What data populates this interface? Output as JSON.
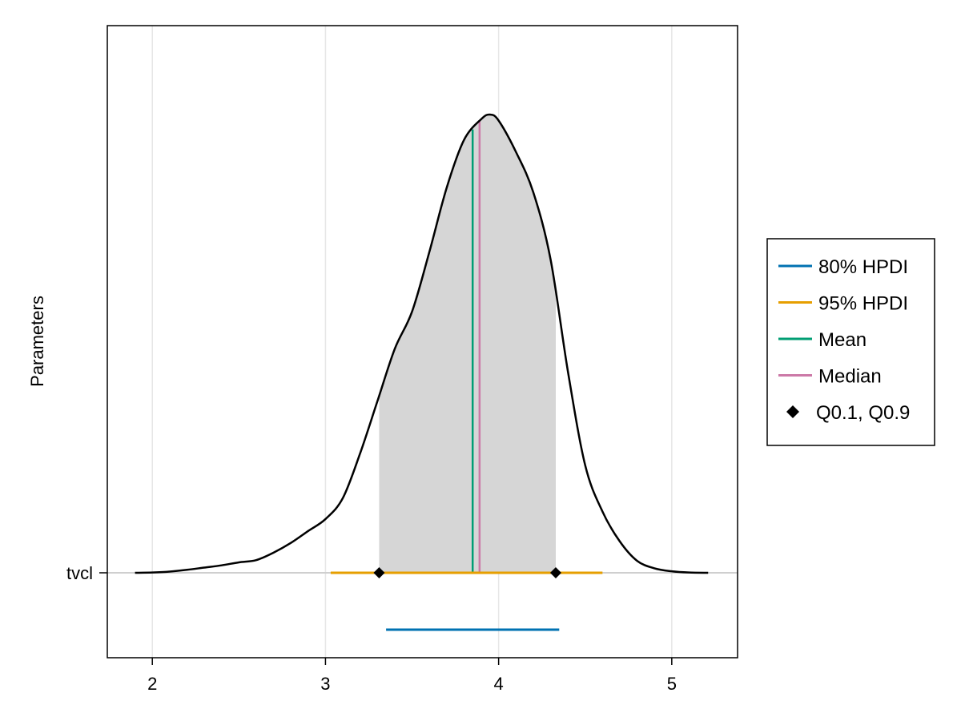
{
  "chart_data": {
    "type": "area",
    "parameter": "tvcl",
    "ylabel": "Parameters",
    "xlabel": "",
    "title": "",
    "xlim": [
      1.74,
      5.38
    ],
    "x_ticks": [
      "2",
      "3",
      "4",
      "5"
    ],
    "x_tick_values": [
      2,
      3,
      4,
      5
    ],
    "y_tick_label": "tvcl",
    "grid": true,
    "legend_position": "right",
    "density": {
      "x": [
        1.9,
        2.0,
        2.1,
        2.2,
        2.3,
        2.4,
        2.5,
        2.6,
        2.7,
        2.8,
        2.9,
        3.0,
        3.1,
        3.2,
        3.3,
        3.4,
        3.5,
        3.6,
        3.7,
        3.8,
        3.9,
        3.95,
        4.0,
        4.1,
        4.2,
        4.3,
        4.4,
        4.5,
        4.6,
        4.7,
        4.8,
        4.9,
        5.0,
        5.1,
        5.21
      ],
      "y": [
        0.0,
        0.002,
        0.008,
        0.02,
        0.035,
        0.05,
        0.07,
        0.085,
        0.135,
        0.2,
        0.28,
        0.36,
        0.5,
        0.8,
        1.15,
        1.5,
        1.75,
        2.15,
        2.58,
        2.9,
        3.04,
        3.07,
        3.03,
        2.82,
        2.55,
        2.1,
        1.35,
        0.72,
        0.41,
        0.21,
        0.08,
        0.03,
        0.01,
        0.002,
        0.0
      ],
      "y_max": 3.4
    },
    "shaded_interval": [
      3.31,
      4.33
    ],
    "mean": 3.85,
    "median": 3.89,
    "quantiles": [
      3.31,
      4.33
    ],
    "hpdi_80": [
      3.35,
      4.35
    ],
    "hpdi_95": [
      3.03,
      4.6
    ],
    "legend": [
      {
        "label": "80% HPDI",
        "kind": "line",
        "color": "#0072b2"
      },
      {
        "label": "95% HPDI",
        "kind": "line",
        "color": "#e69f00"
      },
      {
        "label": "Mean",
        "kind": "line",
        "color": "#009e73"
      },
      {
        "label": "Median",
        "kind": "line",
        "color": "#cc79a7"
      },
      {
        "label": "Q0.1, Q0.9",
        "kind": "diamond",
        "color": "#000000"
      }
    ],
    "colors": {
      "hpdi_80": "#0072b2",
      "hpdi_95": "#e69f00",
      "mean": "#009e73",
      "median": "#cc79a7",
      "fill": "#d6d6d6",
      "density_line": "#000000",
      "grid": "#e6e6e6"
    }
  }
}
